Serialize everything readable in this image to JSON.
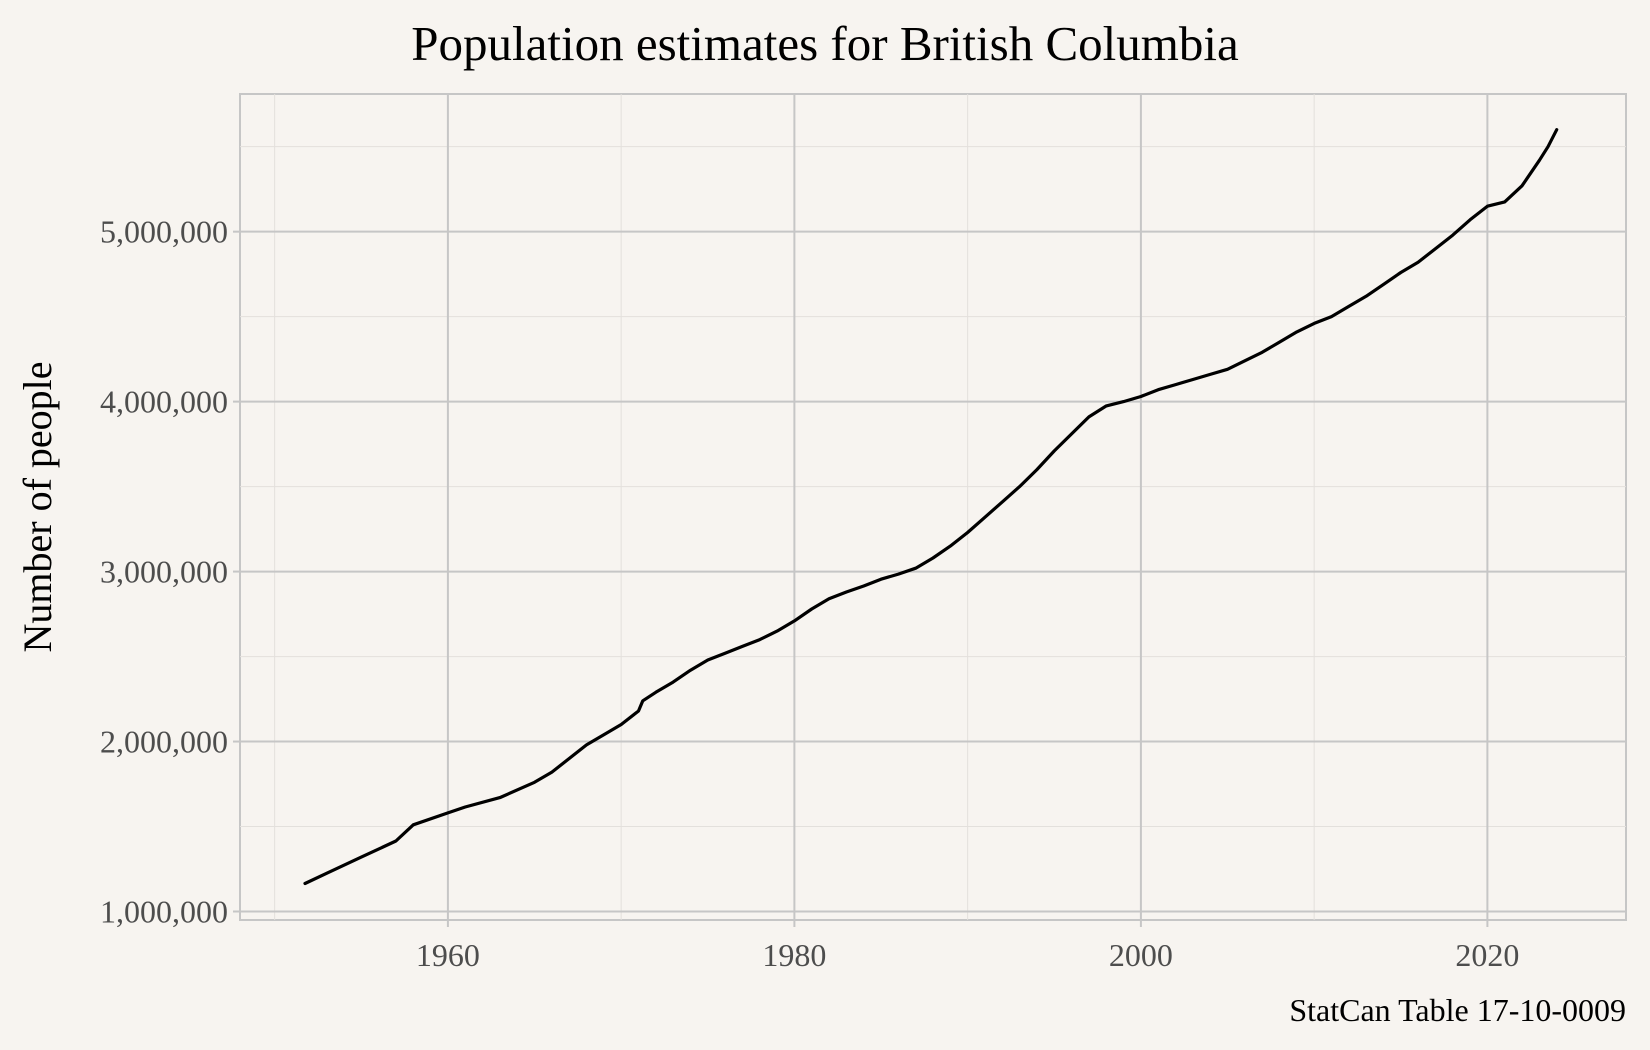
{
  "chart_data": {
    "type": "line",
    "title": "Population estimates for British Columbia",
    "xlabel": "",
    "ylabel": "Number of people",
    "caption": "StatCan Table 17-10-0009",
    "xlim": [
      1948,
      2028
    ],
    "ylim": [
      950000,
      5810000
    ],
    "x_ticks": [
      1960,
      1980,
      2000,
      2020
    ],
    "x_minor_ticks": [
      1950,
      1970,
      1990,
      2010
    ],
    "y_ticks": [
      1000000,
      2000000,
      3000000,
      4000000,
      5000000
    ],
    "y_minor_ticks": [
      1500000,
      2500000,
      3500000,
      4500000,
      5500000
    ],
    "x_tick_labels": [
      "1960",
      "1980",
      "2000",
      "2020"
    ],
    "y_tick_labels": [
      "1,000,000",
      "2,000,000",
      "3,000,000",
      "4,000,000",
      "5,000,000"
    ],
    "grid": true,
    "colors": {
      "background": "#f7f4f0",
      "grid": "#c6c6c6",
      "line": "#000000"
    },
    "series": [
      {
        "x": [
          1951.75,
          1953,
          1955,
          1957,
          1958,
          1960,
          1961,
          1963,
          1965,
          1966,
          1967,
          1968,
          1969,
          1970,
          1971,
          1971.25,
          1972,
          1973,
          1974,
          1975,
          1976,
          1977,
          1978,
          1979,
          1980,
          1981,
          1982,
          1983,
          1984,
          1985,
          1986,
          1987,
          1988,
          1989,
          1990,
          1991,
          1992,
          1993,
          1994,
          1995,
          1996,
          1997,
          1998,
          1999,
          2000,
          2001,
          2002,
          2003,
          2004,
          2005,
          2006,
          2007,
          2008,
          2009,
          2010,
          2011,
          2012,
          2013,
          2014,
          2015,
          2016,
          2017,
          2018,
          2019,
          2020,
          2021,
          2022,
          2023,
          2023.5,
          2024
        ],
        "y": [
          1165000,
          1225000,
          1320000,
          1415000,
          1510000,
          1580000,
          1615000,
          1670000,
          1760000,
          1820000,
          1900000,
          1980000,
          2040000,
          2100000,
          2180000,
          2240000,
          2290000,
          2350000,
          2420000,
          2480000,
          2520000,
          2560000,
          2600000,
          2650000,
          2710000,
          2780000,
          2840000,
          2880000,
          2915000,
          2955000,
          2985000,
          3020000,
          3080000,
          3150000,
          3230000,
          3320000,
          3410000,
          3500000,
          3600000,
          3710000,
          3810000,
          3910000,
          3975000,
          4000000,
          4030000,
          4070000,
          4100000,
          4130000,
          4160000,
          4190000,
          4240000,
          4290000,
          4350000,
          4410000,
          4460000,
          4500000,
          4560000,
          4620000,
          4690000,
          4760000,
          4820000,
          4900000,
          4980000,
          5070000,
          5150000,
          5175000,
          5270000,
          5420000,
          5500000,
          5600000
        ]
      }
    ]
  }
}
